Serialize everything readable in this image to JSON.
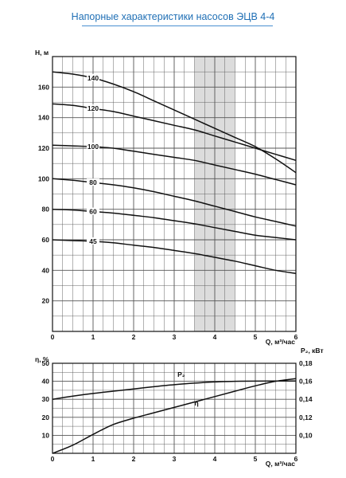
{
  "title": "Напорные характеристики насосов ЭЦВ 4-4",
  "colors": {
    "title": "#1f6fb5",
    "grid": "#555555",
    "curve": "#111111",
    "highlight": "#dcdcdc"
  },
  "chart_data": [
    {
      "type": "line",
      "ylabel": "H, м",
      "xlabel": "Q, м³/час",
      "xlim": [
        0,
        6
      ],
      "ylim": [
        0,
        180
      ],
      "x_ticks": [
        "0",
        "1",
        "2",
        "3",
        "4",
        "5",
        "6"
      ],
      "y_ticks": [
        "20",
        "40",
        "60",
        "80",
        "100",
        "120",
        "140",
        "160"
      ],
      "grid": true,
      "highlight_range": [
        3.5,
        4.5
      ],
      "series": [
        {
          "name": "140",
          "label_x": 1.0,
          "x": [
            0,
            0.5,
            1,
            1.5,
            2,
            2.5,
            3,
            3.5,
            4,
            4.5,
            5,
            5.5,
            6
          ],
          "y": [
            170,
            168.5,
            166,
            162,
            157,
            151,
            145,
            139,
            133,
            127,
            121,
            113,
            104
          ]
        },
        {
          "name": "120",
          "label_x": 1.0,
          "x": [
            0,
            0.5,
            1,
            1.5,
            2,
            2.5,
            3,
            3.5,
            4,
            4.5,
            5,
            5.5,
            6
          ],
          "y": [
            149,
            148,
            146,
            144,
            141,
            138,
            135,
            132,
            128,
            124,
            120,
            116,
            112
          ]
        },
        {
          "name": "100",
          "label_x": 1.0,
          "x": [
            0,
            0.5,
            1,
            1.5,
            2,
            2.5,
            3,
            3.5,
            4,
            4.5,
            5,
            5.5,
            6
          ],
          "y": [
            122,
            121.5,
            121,
            120,
            118,
            116,
            114,
            112,
            109,
            106,
            103,
            99.5,
            96
          ]
        },
        {
          "name": "80",
          "label_x": 1.0,
          "x": [
            0,
            0.5,
            1,
            1.5,
            2,
            2.5,
            3,
            3.5,
            4,
            4.5,
            5,
            5.5,
            6
          ],
          "y": [
            100,
            99,
            97.5,
            96,
            94,
            91.5,
            88.5,
            85.5,
            82,
            78.5,
            75,
            72,
            69
          ]
        },
        {
          "name": "60",
          "label_x": 1.0,
          "x": [
            0,
            0.5,
            1,
            1.5,
            2,
            2.5,
            3,
            3.5,
            4,
            4.5,
            5,
            5.5,
            6
          ],
          "y": [
            80,
            79.5,
            78.5,
            77.5,
            76,
            74.5,
            72.5,
            70.5,
            68,
            65.5,
            63,
            61.5,
            60
          ]
        },
        {
          "name": "45",
          "label_x": 1.0,
          "x": [
            0,
            0.5,
            1,
            1.5,
            2,
            2.5,
            3,
            3.5,
            4,
            4.5,
            5,
            5.5,
            6
          ],
          "y": [
            60,
            59.5,
            59,
            58,
            56.5,
            55,
            53,
            51,
            48.5,
            46,
            43,
            40,
            38
          ]
        }
      ]
    },
    {
      "type": "line",
      "ylabel": "η, %",
      "ylabel_right": "P₂, кВт",
      "xlabel": "Q, м³/час",
      "xlim": [
        0,
        6
      ],
      "ylim": [
        0,
        50
      ],
      "ylim_right": [
        0.08,
        0.18
      ],
      "x_ticks": [
        "0",
        "1",
        "2",
        "3",
        "4",
        "5",
        "6"
      ],
      "y_ticks": [
        "10",
        "20",
        "30",
        "40",
        "50"
      ],
      "y_ticks_right": [
        "0,10",
        "0,12",
        "0,14",
        "0,16",
        "0,18"
      ],
      "grid": true,
      "series": [
        {
          "name": "P₂",
          "axis": "right",
          "label_x": 0.1,
          "x": [
            0,
            0.5,
            1,
            1.5,
            2,
            2.5,
            3,
            3.5,
            4,
            4.5,
            5,
            5.5,
            6
          ],
          "y": [
            0.14,
            0.1435,
            0.1465,
            0.149,
            0.1515,
            0.154,
            0.1562,
            0.158,
            0.1593,
            0.16,
            0.1602,
            0.1603,
            0.1603
          ]
        },
        {
          "name": "η",
          "axis": "left",
          "label_x": 0.57,
          "x": [
            0,
            0.5,
            1,
            1.5,
            2,
            2.5,
            3,
            3.5,
            4,
            4.5,
            5,
            5.5,
            6
          ],
          "y": [
            0,
            4.5,
            10.5,
            16,
            19.5,
            22.5,
            25.5,
            28.5,
            31.5,
            34.5,
            37.5,
            40,
            41.5
          ]
        }
      ]
    }
  ]
}
